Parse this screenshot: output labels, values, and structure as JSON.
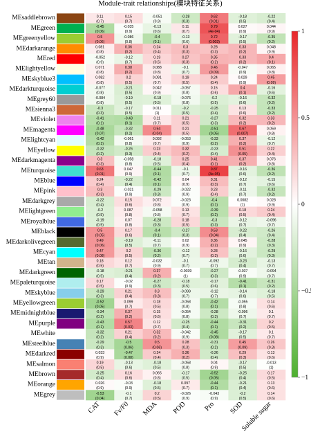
{
  "chart_data": {
    "type": "heatmap",
    "title": "Module-trait relationships(模块特征关系)",
    "traits": [
      "CAT",
      "Fv/F0",
      "MDA",
      "POD",
      "Pro",
      "SOD",
      "Soluble sugar"
    ],
    "modules": [
      {
        "name": "MEsaddlebrown",
        "color": "#8b4513",
        "r": [
          0.11,
          0.15,
          -0.051,
          -0.28,
          0.62,
          -0.18,
          -0.22
        ],
        "p": [
          "(0.7)",
          "(0.7)",
          "(0.9)",
          "(0.3)",
          "(0.01)",
          "(0.5)",
          "(0.4)"
        ]
      },
      {
        "name": "MEgreen",
        "color": "#00b050",
        "r": [
          -0.45,
          -0.035,
          -0.13,
          0.11,
          0.79,
          0.027,
          0.044
        ],
        "p": [
          "(0.06)",
          "(0.9)",
          "(0.6)",
          "(0.7)",
          "(4e-04)",
          "(0.9)",
          "(0.9)"
        ]
      },
      {
        "name": "MEgreenyellow",
        "color": "#9acd32",
        "r": [
          0.5,
          -0.086,
          -0.4,
          -0.13,
          0.72,
          -0.17,
          -0.35
        ],
        "p": [
          "(0.06)",
          "(0.8)",
          "(0.1)",
          "(0.6)",
          "(0.003)",
          "(0.5)",
          "(0.2)"
        ]
      },
      {
        "name": "MEdarkarange",
        "color": "#ff8c00",
        "r": [
          0.081,
          0.36,
          0.24,
          0.3,
          0.28,
          0.33,
          0.048
        ],
        "p": [
          "(0.8)",
          "(0.2)",
          "(0.4)",
          "(0.3)",
          "(0.3)",
          "(0.2)",
          "(0.9)"
        ]
      },
      {
        "name": "MEred",
        "color": "#ff0000",
        "r": [
          -0.052,
          -0.12,
          0.19,
          0.27,
          0.35,
          0.33,
          0.4
        ],
        "p": [
          "(0.9)",
          "(0.7)",
          "(0.5)",
          "(0.3)",
          "(0.2)",
          "(0.2)",
          "(0.1)"
        ]
      },
      {
        "name": "MElightyellow",
        "color": "#ffffe0",
        "r": [
          0.071,
          0.38,
          0.088,
          -0.1,
          0.46,
          -0.047,
          0.065
        ],
        "p": [
          "(0.8)",
          "(0.2)",
          "(0.8)",
          "(0.7)",
          "(0.09)",
          "(0.9)",
          "(0.8)"
        ]
      },
      {
        "name": "MEskyblue3",
        "color": "#00bfff",
        "r": [
          0.082,
          0.2,
          0.091,
          0.19,
          0.24,
          0.029,
          0.45
        ],
        "p": [
          "(0.8)",
          "(0.5)",
          "(0.7)",
          "(0.5)",
          "(0.4)",
          "(0.9)",
          "(0.09)"
        ]
      },
      {
        "name": "MEdarkturquoise",
        "color": "#00ced1",
        "r": [
          -0.077,
          -0.21,
          0.042,
          -0.057,
          0.15,
          0.4,
          -0.16
        ],
        "p": [
          "(0.8)",
          "(0.5)",
          "(0.9)",
          "(0.8)",
          "(0.6)",
          "(0.1)",
          "(0.6)"
        ]
      },
      {
        "name": "MEgrey60",
        "color": "#999999",
        "r": [
          -0.084,
          -0.19,
          -0.18,
          -0.076,
          -0.2,
          -0.16,
          -0.32
        ],
        "p": [
          "(0.8)",
          "(0.5)",
          "(0.5)",
          "(0.8)",
          "(0.5)",
          "(0.6)",
          "(0.2)"
        ]
      },
      {
        "name": "MEsienna3",
        "color": "#cd6839",
        "r": [
          -0.3,
          -0.17,
          0.011,
          -0.2,
          -0.25,
          0.13,
          -0.33
        ],
        "p": [
          "(0.3)",
          "(0.5)",
          "(1)",
          "(0.5)",
          "(0.4)",
          "(0.6)",
          "(0.2)"
        ]
      },
      {
        "name": "MEviolet",
        "color": "#ee82ee",
        "r": [
          -0.41,
          -0.43,
          0.11,
          0.21,
          -0.27,
          0.32,
          0.33
        ],
        "p": [
          "(0.1)",
          "(0.1)",
          "(0.7)",
          "(0.5)",
          "(0.3)",
          "(0.2)",
          "(0.2)"
        ]
      },
      {
        "name": "MEmagenta",
        "color": "#ff00ff",
        "r": [
          -0.48,
          -0.32,
          0.54,
          0.21,
          -0.51,
          0.67,
          0.059
        ],
        "p": [
          "(0.07)",
          "(0.2)",
          "(0.04)",
          "(0.5)",
          "(0.05)",
          "(0.007)",
          "(0.8)"
        ]
      },
      {
        "name": "MElightcyan",
        "color": "#e0ffff",
        "r": [
          -0.42,
          -0.061,
          0.092,
          -0.053,
          -0.33,
          0.37,
          -0.12
        ],
        "p": [
          "(0.1)",
          "(0.8)",
          "(0.7)",
          "(0.9)",
          "(0.2)",
          "(0.2)",
          "(0.7)"
        ]
      },
      {
        "name": "MEyellow",
        "color": "#ffff00",
        "r": [
          -0.32,
          -0.26,
          0.23,
          0.32,
          -0.23,
          0.51,
          0.22
        ],
        "p": [
          "(0.2)",
          "(0.3)",
          "(0.4)",
          "(0.2)",
          "(0.4)",
          "(0.05)",
          "(0.4)"
        ]
      },
      {
        "name": "MEdarkmagenta",
        "color": "#8b008b",
        "r": [
          0.3,
          -0.058,
          -0.18,
          0.25,
          0.41,
          0.37,
          0.076
        ],
        "p": [
          "(0.3)",
          "(0.8)",
          "(0.5)",
          "(0.4)",
          "(0.1)",
          "(0.2)",
          "(0.8)"
        ]
      },
      {
        "name": "MEturquoise",
        "color": "#40e0d0",
        "r": [
          0.63,
          0.047,
          -0.44,
          -0.1,
          0.87,
          -0.16,
          -0.36
        ],
        "p": [
          "(0.01)",
          "(0.9)",
          "(0.1)",
          "(0.7)",
          "(3e-05)",
          "(0.6)",
          "(0.2)"
        ]
      },
      {
        "name": "MEblue",
        "color": "#0000ff",
        "r": [
          0.24,
          -0.22,
          -0.42,
          0.04,
          0.31,
          -0.12,
          -0.15
        ],
        "p": [
          "(0.4)",
          "(0.4)",
          "(0.1)",
          "(0.9)",
          "(0.3)",
          "(0.7)",
          "(0.6)"
        ]
      },
      {
        "name": "MEpink",
        "color": "#ffc0cb",
        "r": [
          0.3,
          -0.021,
          -0.29,
          -0.022,
          0.23,
          -0.11,
          -0.32
        ],
        "p": [
          "(0.3)",
          "(0.9)",
          "(0.3)",
          "(0.9)",
          "(0.4)",
          "(0.7)",
          "(0.2)"
        ]
      },
      {
        "name": "MEdarkgrey",
        "color": "#a9a9a9",
        "r": [
          -0.22,
          0.15,
          0.072,
          -0.023,
          -0.4,
          0.0082,
          0.028
        ],
        "p": [
          "(0.4)",
          "(0.6)",
          "(0.8)",
          "(0.9)",
          "(0.1)",
          "(1)",
          "(0.9)"
        ]
      },
      {
        "name": "MElightgreen",
        "color": "#90ee90",
        "r": [
          -0.2,
          0.087,
          -0.058,
          0.13,
          -0.39,
          0.18,
          0.24
        ],
        "p": [
          "(0.5)",
          "(0.8)",
          "(0.8)",
          "(0.7)",
          "(0.2)",
          "(0.5)",
          "(0.4)"
        ]
      },
      {
        "name": "MEroyalblue",
        "color": "#4169e1",
        "r": [
          -0.19,
          0.07,
          -0.28,
          0.18,
          -0.3,
          -0.12,
          -0.096
        ],
        "p": [
          "(0.5)",
          "(0.8)",
          "(0.3)",
          "(0.5)",
          "(0.3)",
          "(0.7)",
          "(0.7)"
        ]
      },
      {
        "name": "MEblack",
        "color": "#000000",
        "r": [
          0.5,
          0.17,
          -0.4,
          -0.27,
          0.53,
          -0.22,
          -0.26
        ],
        "p": [
          "(0.05)",
          "(0.6)",
          "(0.1)",
          "(0.3)",
          "(0.04)",
          "(0.4)",
          "(0.4)"
        ]
      },
      {
        "name": "MEdarkolivegreen",
        "color": "#556b2f",
        "r": [
          0.49,
          -0.19,
          -0.11,
          0.02,
          0.36,
          0.045,
          -0.28
        ],
        "p": [
          "(0.06)",
          "(0.5)",
          "(0.7)",
          "(0.9)",
          "(0.2)",
          "(0.9)",
          "(0.3)"
        ]
      },
      {
        "name": "MEcyan",
        "color": "#00ffff",
        "r": [
          0.47,
          0.2,
          -0.36,
          -0.12,
          0.28,
          -0.16,
          -0.29
        ],
        "p": [
          "(0.08)",
          "(0.5)",
          "(0.2)",
          "(0.7)",
          "(0.3)",
          "(0.6)",
          "(0.3)"
        ]
      },
      {
        "name": "MEtan",
        "color": "#d2b48c",
        "r": [
          0.18,
          0.12,
          -0.032,
          -0.1,
          -0.092,
          -0.23,
          -0.13
        ],
        "p": [
          "(0.5)",
          "(0.7)",
          "(0.9)",
          "(0.7)",
          "(0.7)",
          "(0.4)",
          "(0.7)"
        ]
      },
      {
        "name": "MEdarkgreen",
        "color": "#006400",
        "r": [
          -0.18,
          -0.21,
          0.37,
          -0.0039,
          -0.27,
          -0.037,
          -0.094
        ],
        "p": [
          "(0.5)",
          "(0.4)",
          "(0.2)",
          "(1)",
          "(0.3)",
          "(0.9)",
          "(0.7)"
        ]
      },
      {
        "name": "MEpaleturquoise",
        "color": "#afeeee",
        "r": [
          0.17,
          -0.02,
          -0.27,
          -0.18,
          -0.17,
          -0.41,
          -0.31
        ],
        "p": [
          "(0.5)",
          "(0.9)",
          "(0.3)",
          "(0.5)",
          "(0.6)",
          "(0.1)",
          "(0.2)"
        ]
      },
      {
        "name": "MEskyblue",
        "color": "#87ceeb",
        "r": [
          -0.29,
          0.21,
          0.3,
          -0.099,
          -0.12,
          -0.14,
          -0.18
        ],
        "p": [
          "(0.3)",
          "(0.4)",
          "(0.3)",
          "(0.7)",
          "(0.7)",
          "(0.6)",
          "(0.5)"
        ]
      },
      {
        "name": "MEyellowgreen",
        "color": "#9acd32",
        "r": [
          -0.52,
          0.099,
          0.18,
          -0.058,
          -0.42,
          -0.055,
          0.14
        ],
        "p": [
          "(0.05)",
          "(0.7)",
          "(0.5)",
          "(0.8)",
          "(0.1)",
          "(0.8)",
          "(0.6)"
        ]
      },
      {
        "name": "MEmidnightblue",
        "color": "#191970",
        "r": [
          -0.34,
          0.37,
          0.15,
          -0.054,
          -0.28,
          -0.096,
          0.1
        ],
        "p": [
          "(0.2)",
          "(0.2)",
          "(0.6)",
          "(0.8)",
          "(0.3)",
          "(0.7)",
          "(0.7)"
        ]
      },
      {
        "name": "MEpurple",
        "color": "#800080",
        "r": [
          -0.43,
          0.57,
          0.12,
          -0.25,
          -0.44,
          -0.31,
          0.2
        ],
        "p": [
          "(0.1)",
          "(0.03)",
          "(0.7)",
          "(0.4)",
          "(0.1)",
          "(0.2)",
          "(0.5)"
        ]
      },
      {
        "name": "MEwhite",
        "color": "#ffffff",
        "r": [
          -0.32,
          0.21,
          0.32,
          -0.042,
          -0.45,
          -0.17,
          0.1
        ],
        "p": [
          "(0.2)",
          "(0.4)",
          "(0.2)",
          "(0.9)",
          "(0.08)",
          "(0.5)",
          "(0.7)"
        ]
      },
      {
        "name": "MEsteelblue",
        "color": "#4682b4",
        "r": [
          -0.29,
          -0.5,
          0.5,
          0.28,
          -0.31,
          0.45,
          0.26
        ],
        "p": [
          "(0.3)",
          "(0.06)",
          "(0.06)",
          "(0.3)",
          "(0.2)",
          "(0.09)",
          "(0.3)"
        ]
      },
      {
        "name": "MEdarkred",
        "color": "#8b0000",
        "r": [
          0.033,
          -0.47,
          0.24,
          0.36,
          -0.26,
          0.29,
          0.13
        ],
        "p": [
          "(0.9)",
          "(0.08)",
          "(0.4)",
          "(0.2)",
          "(0.4)",
          "(0.3)",
          "(0.6)"
        ]
      },
      {
        "name": "MEsalmon",
        "color": "#fa8072",
        "r": [
          0.19,
          -0.13,
          -0.18,
          -0.058,
          0.04,
          -0.17,
          -0.013
        ],
        "p": [
          "(0.5)",
          "(0.6)",
          "(0.5)",
          "(0.8)",
          "(0.9)",
          "(0.5)",
          "(1)"
        ]
      },
      {
        "name": "MEbrown",
        "color": "#a52a2a",
        "r": [
          -0.25,
          0.16,
          0.065,
          -0.17,
          -0.52,
          -0.25,
          0.17
        ],
        "p": [
          "(0.4)",
          "(0.6)",
          "(0.8)",
          "(0.5)",
          "(0.05)",
          "(0.4)",
          "(0.5)"
        ]
      },
      {
        "name": "MEorange",
        "color": "#ffa500",
        "r": [
          0.026,
          -0.03,
          -0.18,
          0.097,
          -0.44,
          -0.21,
          0.13
        ],
        "p": [
          "(0.9)",
          "(0.9)",
          "(0.5)",
          "(0.7)",
          "(0.1)",
          "(0.4)",
          "(0.6)"
        ]
      },
      {
        "name": "MEgrey",
        "color": "#bebebe",
        "r": [
          -0.53,
          -0.1,
          0.2,
          -0.026,
          -0.043,
          -0.2,
          0.14
        ],
        "p": [
          "(0.04)",
          "(0.7)",
          "(0.5)",
          "(0.9)",
          "(0.9)",
          "(0.5)",
          "(0.6)"
        ]
      }
    ],
    "colorbar": {
      "ticks": [
        "1",
        "0.5",
        "0",
        "−0.5",
        "−1"
      ],
      "tick_values": [
        1,
        0.5,
        0,
        -0.5,
        -1
      ],
      "colors": {
        "low": "#4daf2e",
        "mid": "#ffffff",
        "high": "#e8262a"
      }
    },
    "range": [
      -1,
      1
    ]
  }
}
